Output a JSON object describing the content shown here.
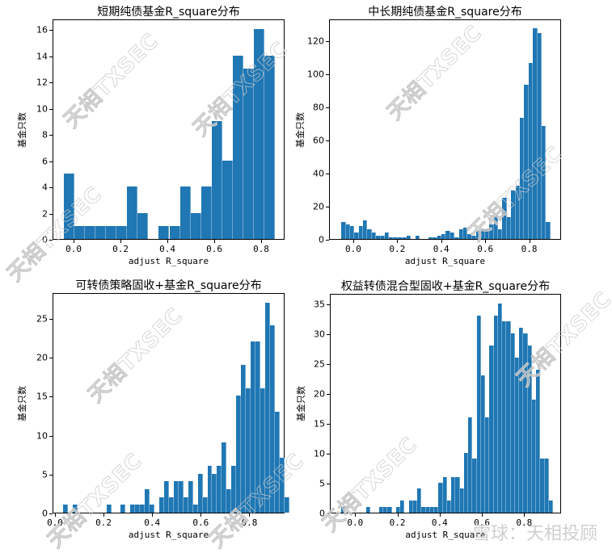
{
  "watermark_text": "天相TXSEC",
  "footer_logo": "雪球：天相投顾",
  "colors": {
    "bar": "#1f77b4",
    "axis": "#000000",
    "watermark": "#c8c8c8"
  },
  "chart_data": [
    {
      "type": "bar",
      "title": "短期纯债基金R_square分布",
      "xlabel": "adjust R_square",
      "ylabel": "基金只数",
      "xlim": [
        -0.09,
        0.9
      ],
      "ylim": [
        0,
        16.8
      ],
      "xticks": [
        0.0,
        0.2,
        0.4,
        0.6,
        0.8
      ],
      "xtick_labels": [
        "0.0",
        "0.2",
        "0.4",
        "0.6",
        "0.8"
      ],
      "yticks": [
        0,
        2,
        4,
        6,
        8,
        10,
        12,
        14,
        16
      ],
      "bin_start": -0.045,
      "bin_width": 0.045,
      "values": [
        5,
        1,
        1,
        1,
        1,
        1,
        4,
        2,
        0,
        1,
        1,
        4,
        2,
        4,
        9,
        6,
        14,
        13,
        16,
        14
      ],
      "grid": false,
      "legend": null
    },
    {
      "type": "bar",
      "title": "中长期纯债基金R_square分布",
      "xlabel": "adjust R_square",
      "ylabel": "基金只数",
      "xlim": [
        -0.11,
        0.945
      ],
      "ylim": [
        0,
        133
      ],
      "xticks": [
        0.0,
        0.2,
        0.4,
        0.6,
        0.8
      ],
      "xtick_labels": [
        "0.0",
        "0.2",
        "0.4",
        "0.6",
        "0.8"
      ],
      "yticks": [
        0,
        20,
        40,
        60,
        80,
        100,
        120
      ],
      "bin_start": -0.058,
      "bin_width": 0.0198,
      "values": [
        10,
        9,
        8,
        4,
        8,
        11,
        6,
        4,
        2,
        2,
        4,
        1,
        1,
        1,
        1,
        2,
        0,
        2,
        0,
        0,
        1,
        1,
        2,
        3,
        5,
        4,
        1,
        6,
        7,
        3,
        2,
        5,
        6,
        6,
        9,
        14,
        6,
        25,
        13,
        29,
        32,
        73,
        93,
        106,
        127,
        124,
        68,
        10
      ],
      "grid": false,
      "legend": null
    },
    {
      "type": "bar",
      "title": "可转债策略固收+基金R_square分布",
      "xlabel": "adjust R_square",
      "ylabel": "基金只数",
      "xlim": [
        -0.01,
        0.945
      ],
      "ylim": [
        0,
        28.3
      ],
      "xticks": [
        0.0,
        0.2,
        0.4,
        0.6,
        0.8
      ],
      "xtick_labels": [
        "0.0",
        "0.2",
        "0.4",
        "0.6",
        "0.8"
      ],
      "yticks": [
        0,
        5,
        10,
        15,
        20,
        25
      ],
      "bin_start": 0.03,
      "bin_width": 0.0198,
      "values": [
        1,
        0,
        1,
        0,
        0,
        0,
        0,
        0,
        0,
        1,
        0,
        0,
        1,
        0,
        1,
        1,
        1,
        3,
        1,
        0,
        2,
        4,
        2,
        4,
        4,
        2,
        4,
        1,
        5,
        2,
        6,
        5,
        6,
        9,
        3,
        6,
        15,
        19,
        16,
        22,
        22,
        16,
        27,
        24,
        13,
        7,
        2
      ],
      "grid": false,
      "legend": null
    },
    {
      "type": "bar",
      "title": "权益转债混合型固收+基金R_square分布",
      "xlabel": "adjust R_square",
      "ylabel": "基金只数",
      "xlim": [
        -0.12,
        0.975
      ],
      "ylim": [
        0,
        36.8
      ],
      "xticks": [
        0.0,
        0.2,
        0.4,
        0.6,
        0.8
      ],
      "xtick_labels": [
        "0.0",
        "0.2",
        "0.4",
        "0.6",
        "0.8"
      ],
      "yticks": [
        0,
        5,
        10,
        15,
        20,
        25,
        30,
        35
      ],
      "bin_start": -0.072,
      "bin_width": 0.0201,
      "values": [
        1,
        0,
        0,
        0,
        0,
        0,
        1,
        0,
        0,
        1,
        1,
        1,
        0,
        1,
        2,
        0,
        2,
        2,
        4,
        1,
        1,
        1,
        1,
        5,
        6,
        2,
        6,
        6,
        4,
        10,
        16,
        9,
        33,
        23,
        16,
        28,
        33,
        35,
        32,
        32,
        30,
        26,
        31,
        30,
        28,
        19,
        24,
        9,
        9,
        2
      ],
      "grid": false,
      "legend": null
    }
  ]
}
